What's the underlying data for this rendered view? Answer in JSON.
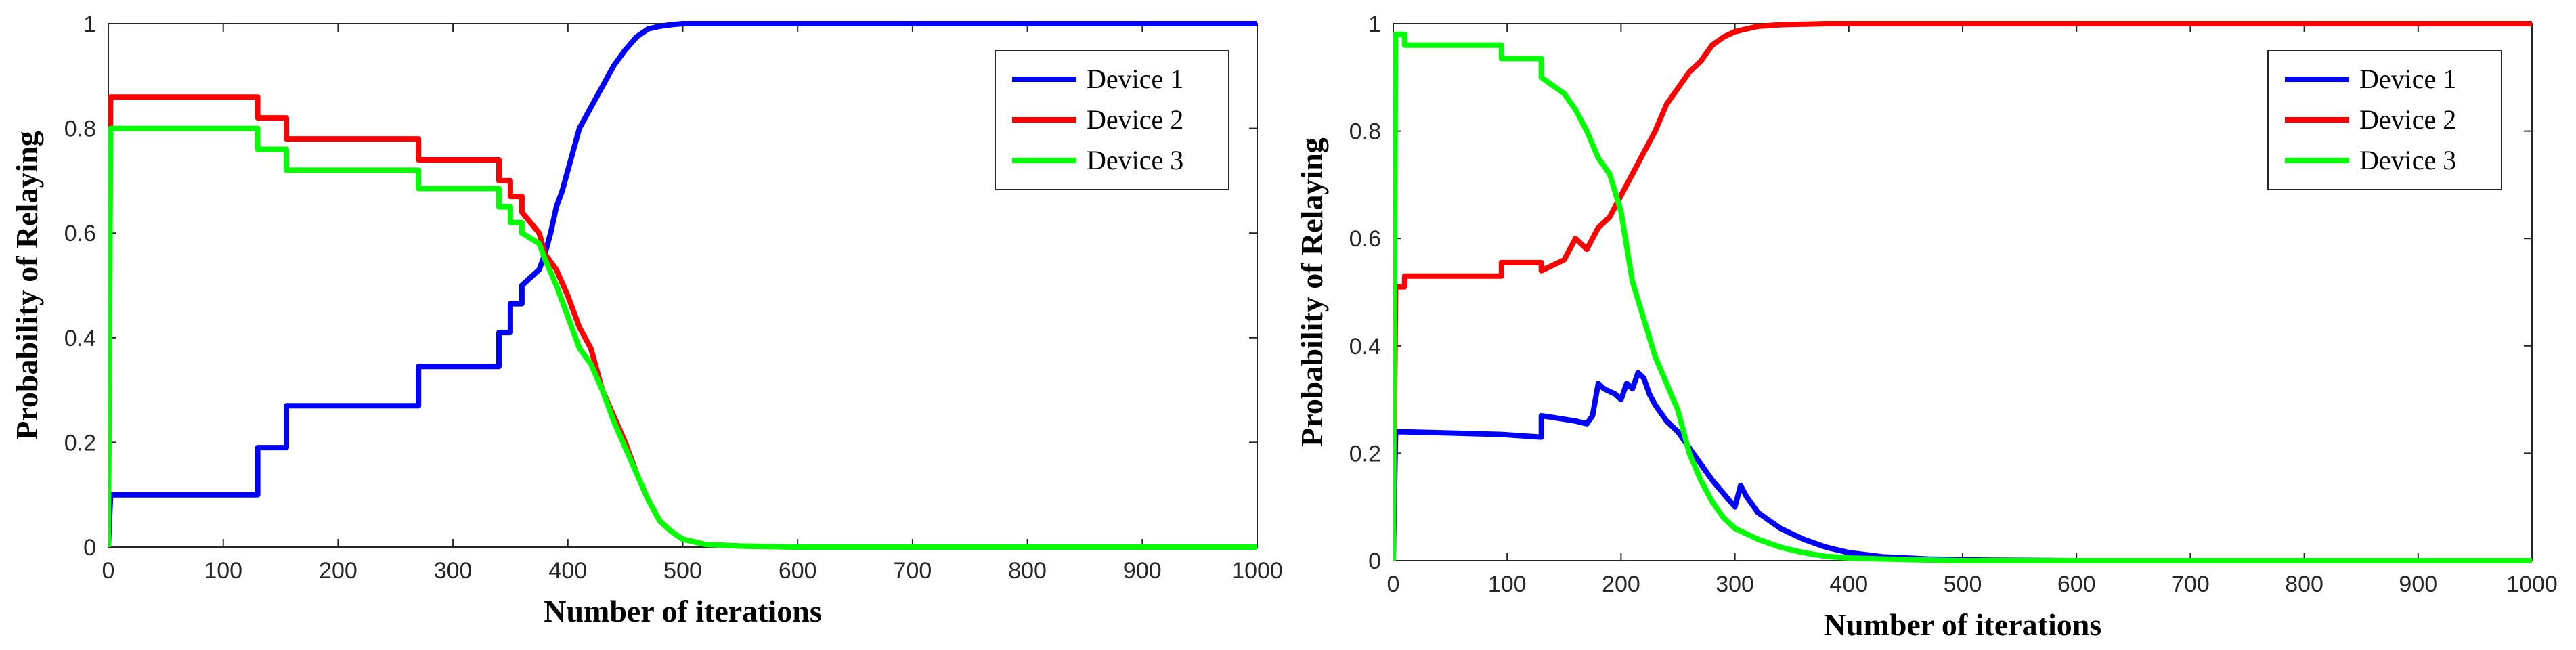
{
  "chart_data": [
    {
      "type": "line",
      "xlabel": "Number of iterations",
      "ylabel": "Probability of Relaying",
      "xlim": [
        0,
        1000
      ],
      "ylim": [
        0,
        1
      ],
      "xticks": [
        "0",
        "100",
        "200",
        "300",
        "400",
        "500",
        "600",
        "700",
        "800",
        "900",
        "1000"
      ],
      "yticks": [
        "0",
        "0.2",
        "0.4",
        "0.6",
        "0.8",
        "1"
      ],
      "grid": false,
      "legend_position": "top-right",
      "series": [
        {
          "name": "Device 1",
          "color": "#0000ff",
          "x": [
            0,
            2,
            130,
            130,
            155,
            155,
            270,
            270,
            340,
            340,
            350,
            350,
            360,
            360,
            375,
            380,
            385,
            390,
            395,
            400,
            405,
            410,
            420,
            430,
            440,
            450,
            460,
            470,
            480,
            490,
            500,
            520,
            550,
            600,
            700,
            800,
            1000
          ],
          "y": [
            0,
            0.1,
            0.1,
            0.19,
            0.19,
            0.27,
            0.27,
            0.345,
            0.345,
            0.41,
            0.41,
            0.465,
            0.465,
            0.5,
            0.53,
            0.56,
            0.6,
            0.65,
            0.68,
            0.72,
            0.76,
            0.8,
            0.84,
            0.88,
            0.92,
            0.95,
            0.975,
            0.99,
            0.995,
            0.998,
            1,
            1,
            1,
            1,
            1,
            1,
            1
          ]
        },
        {
          "name": "Device 2",
          "color": "#ff0000",
          "x": [
            0,
            2,
            130,
            130,
            155,
            155,
            270,
            270,
            340,
            340,
            350,
            350,
            360,
            360,
            375,
            380,
            390,
            400,
            410,
            420,
            430,
            440,
            450,
            460,
            470,
            480,
            490,
            500,
            520,
            550,
            600,
            700,
            800,
            1000
          ],
          "y": [
            0,
            0.86,
            0.86,
            0.82,
            0.82,
            0.78,
            0.78,
            0.74,
            0.74,
            0.7,
            0.7,
            0.67,
            0.67,
            0.64,
            0.6,
            0.56,
            0.53,
            0.48,
            0.42,
            0.38,
            0.3,
            0.25,
            0.2,
            0.14,
            0.09,
            0.05,
            0.03,
            0.015,
            0.005,
            0.002,
            0,
            0,
            0,
            0
          ]
        },
        {
          "name": "Device 3",
          "color": "#00ff00",
          "x": [
            0,
            2,
            130,
            130,
            155,
            155,
            270,
            270,
            340,
            340,
            350,
            350,
            360,
            360,
            375,
            380,
            390,
            400,
            410,
            420,
            430,
            440,
            450,
            460,
            470,
            480,
            490,
            500,
            520,
            550,
            600,
            700,
            800,
            1000
          ],
          "y": [
            0,
            0.8,
            0.8,
            0.76,
            0.76,
            0.72,
            0.72,
            0.685,
            0.685,
            0.65,
            0.65,
            0.62,
            0.62,
            0.6,
            0.58,
            0.55,
            0.5,
            0.44,
            0.38,
            0.35,
            0.3,
            0.24,
            0.19,
            0.14,
            0.09,
            0.05,
            0.03,
            0.015,
            0.005,
            0.002,
            0,
            0,
            0,
            0
          ]
        }
      ]
    },
    {
      "type": "line",
      "xlabel": "Number of iterations",
      "ylabel": "Probability of Relaying",
      "xlim": [
        0,
        1000
      ],
      "ylim": [
        0,
        1
      ],
      "xticks": [
        "0",
        "100",
        "200",
        "300",
        "400",
        "500",
        "600",
        "700",
        "800",
        "900",
        "1000"
      ],
      "yticks": [
        "0",
        "0.2",
        "0.4",
        "0.6",
        "0.8",
        "1"
      ],
      "grid": false,
      "legend_position": "top-right",
      "series": [
        {
          "name": "Device 1",
          "color": "#0000ff",
          "x": [
            0,
            2,
            10,
            95,
            95,
            130,
            130,
            160,
            170,
            175,
            180,
            185,
            190,
            195,
            200,
            205,
            210,
            215,
            220,
            225,
            230,
            240,
            250,
            260,
            280,
            300,
            305,
            310,
            320,
            340,
            360,
            380,
            400,
            430,
            470,
            520,
            600,
            800,
            1000
          ],
          "y": [
            0,
            0.24,
            0.24,
            0.235,
            0.235,
            0.23,
            0.27,
            0.26,
            0.255,
            0.27,
            0.33,
            0.32,
            0.315,
            0.31,
            0.3,
            0.33,
            0.32,
            0.35,
            0.34,
            0.31,
            0.29,
            0.26,
            0.24,
            0.21,
            0.15,
            0.1,
            0.14,
            0.12,
            0.09,
            0.06,
            0.04,
            0.025,
            0.015,
            0.007,
            0.003,
            0.001,
            0,
            0,
            0
          ]
        },
        {
          "name": "Device 2",
          "color": "#ff0000",
          "x": [
            0,
            2,
            10,
            10,
            95,
            95,
            130,
            130,
            150,
            160,
            170,
            180,
            190,
            200,
            210,
            220,
            230,
            240,
            250,
            260,
            270,
            280,
            290,
            300,
            310,
            320,
            340,
            360,
            380,
            400,
            450,
            500,
            600,
            800,
            1000
          ],
          "y": [
            0,
            0.51,
            0.51,
            0.53,
            0.53,
            0.555,
            0.555,
            0.54,
            0.56,
            0.6,
            0.58,
            0.62,
            0.64,
            0.68,
            0.72,
            0.76,
            0.8,
            0.85,
            0.88,
            0.91,
            0.93,
            0.96,
            0.975,
            0.985,
            0.99,
            0.995,
            0.998,
            0.999,
            1,
            1,
            1,
            1,
            1,
            1,
            1
          ]
        },
        {
          "name": "Device 3",
          "color": "#00ff00",
          "x": [
            0,
            2,
            10,
            10,
            95,
            95,
            130,
            130,
            150,
            160,
            170,
            180,
            190,
            200,
            210,
            220,
            230,
            240,
            250,
            260,
            270,
            280,
            290,
            300,
            320,
            340,
            360,
            380,
            400,
            450,
            500,
            600,
            800,
            1000
          ],
          "y": [
            0,
            0.98,
            0.98,
            0.96,
            0.96,
            0.935,
            0.935,
            0.9,
            0.87,
            0.84,
            0.8,
            0.75,
            0.72,
            0.65,
            0.52,
            0.45,
            0.38,
            0.33,
            0.28,
            0.2,
            0.15,
            0.11,
            0.08,
            0.06,
            0.04,
            0.025,
            0.015,
            0.008,
            0.005,
            0.002,
            0,
            0,
            0,
            0
          ]
        }
      ]
    }
  ]
}
